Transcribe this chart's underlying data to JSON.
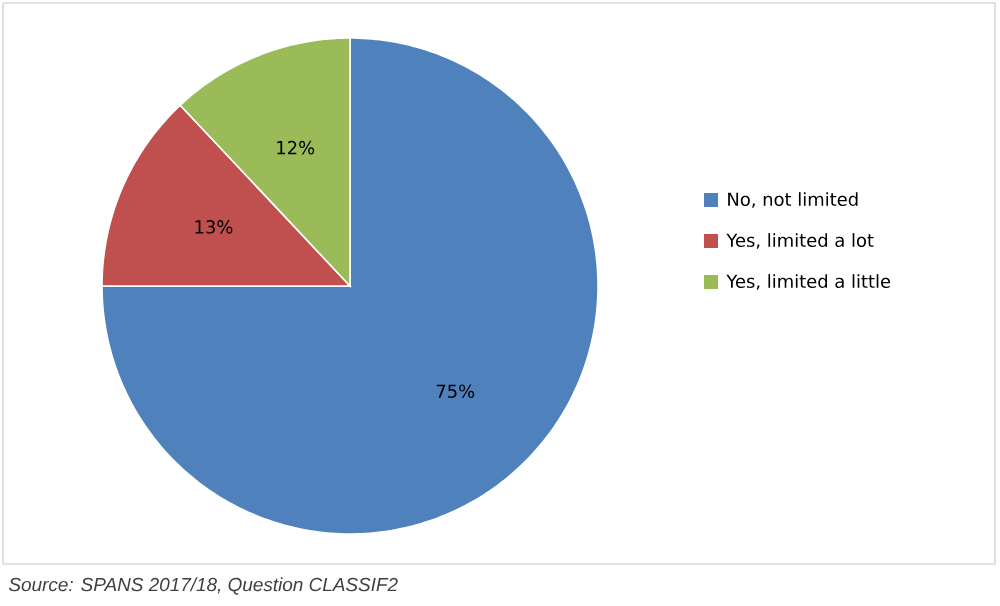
{
  "chart_data": {
    "type": "pie",
    "categories": [
      "No, not limited",
      "Yes, limited a lot",
      "Yes, limited a little"
    ],
    "values": [
      75,
      13,
      12
    ],
    "colors": [
      "#4f81bd",
      "#c0504d",
      "#9bbb59"
    ],
    "value_labels": [
      "75%",
      "13%",
      "12%"
    ],
    "legend": "right",
    "annotations": [
      "Source: SPANS 2017/18, Question CLASSIF2"
    ]
  }
}
